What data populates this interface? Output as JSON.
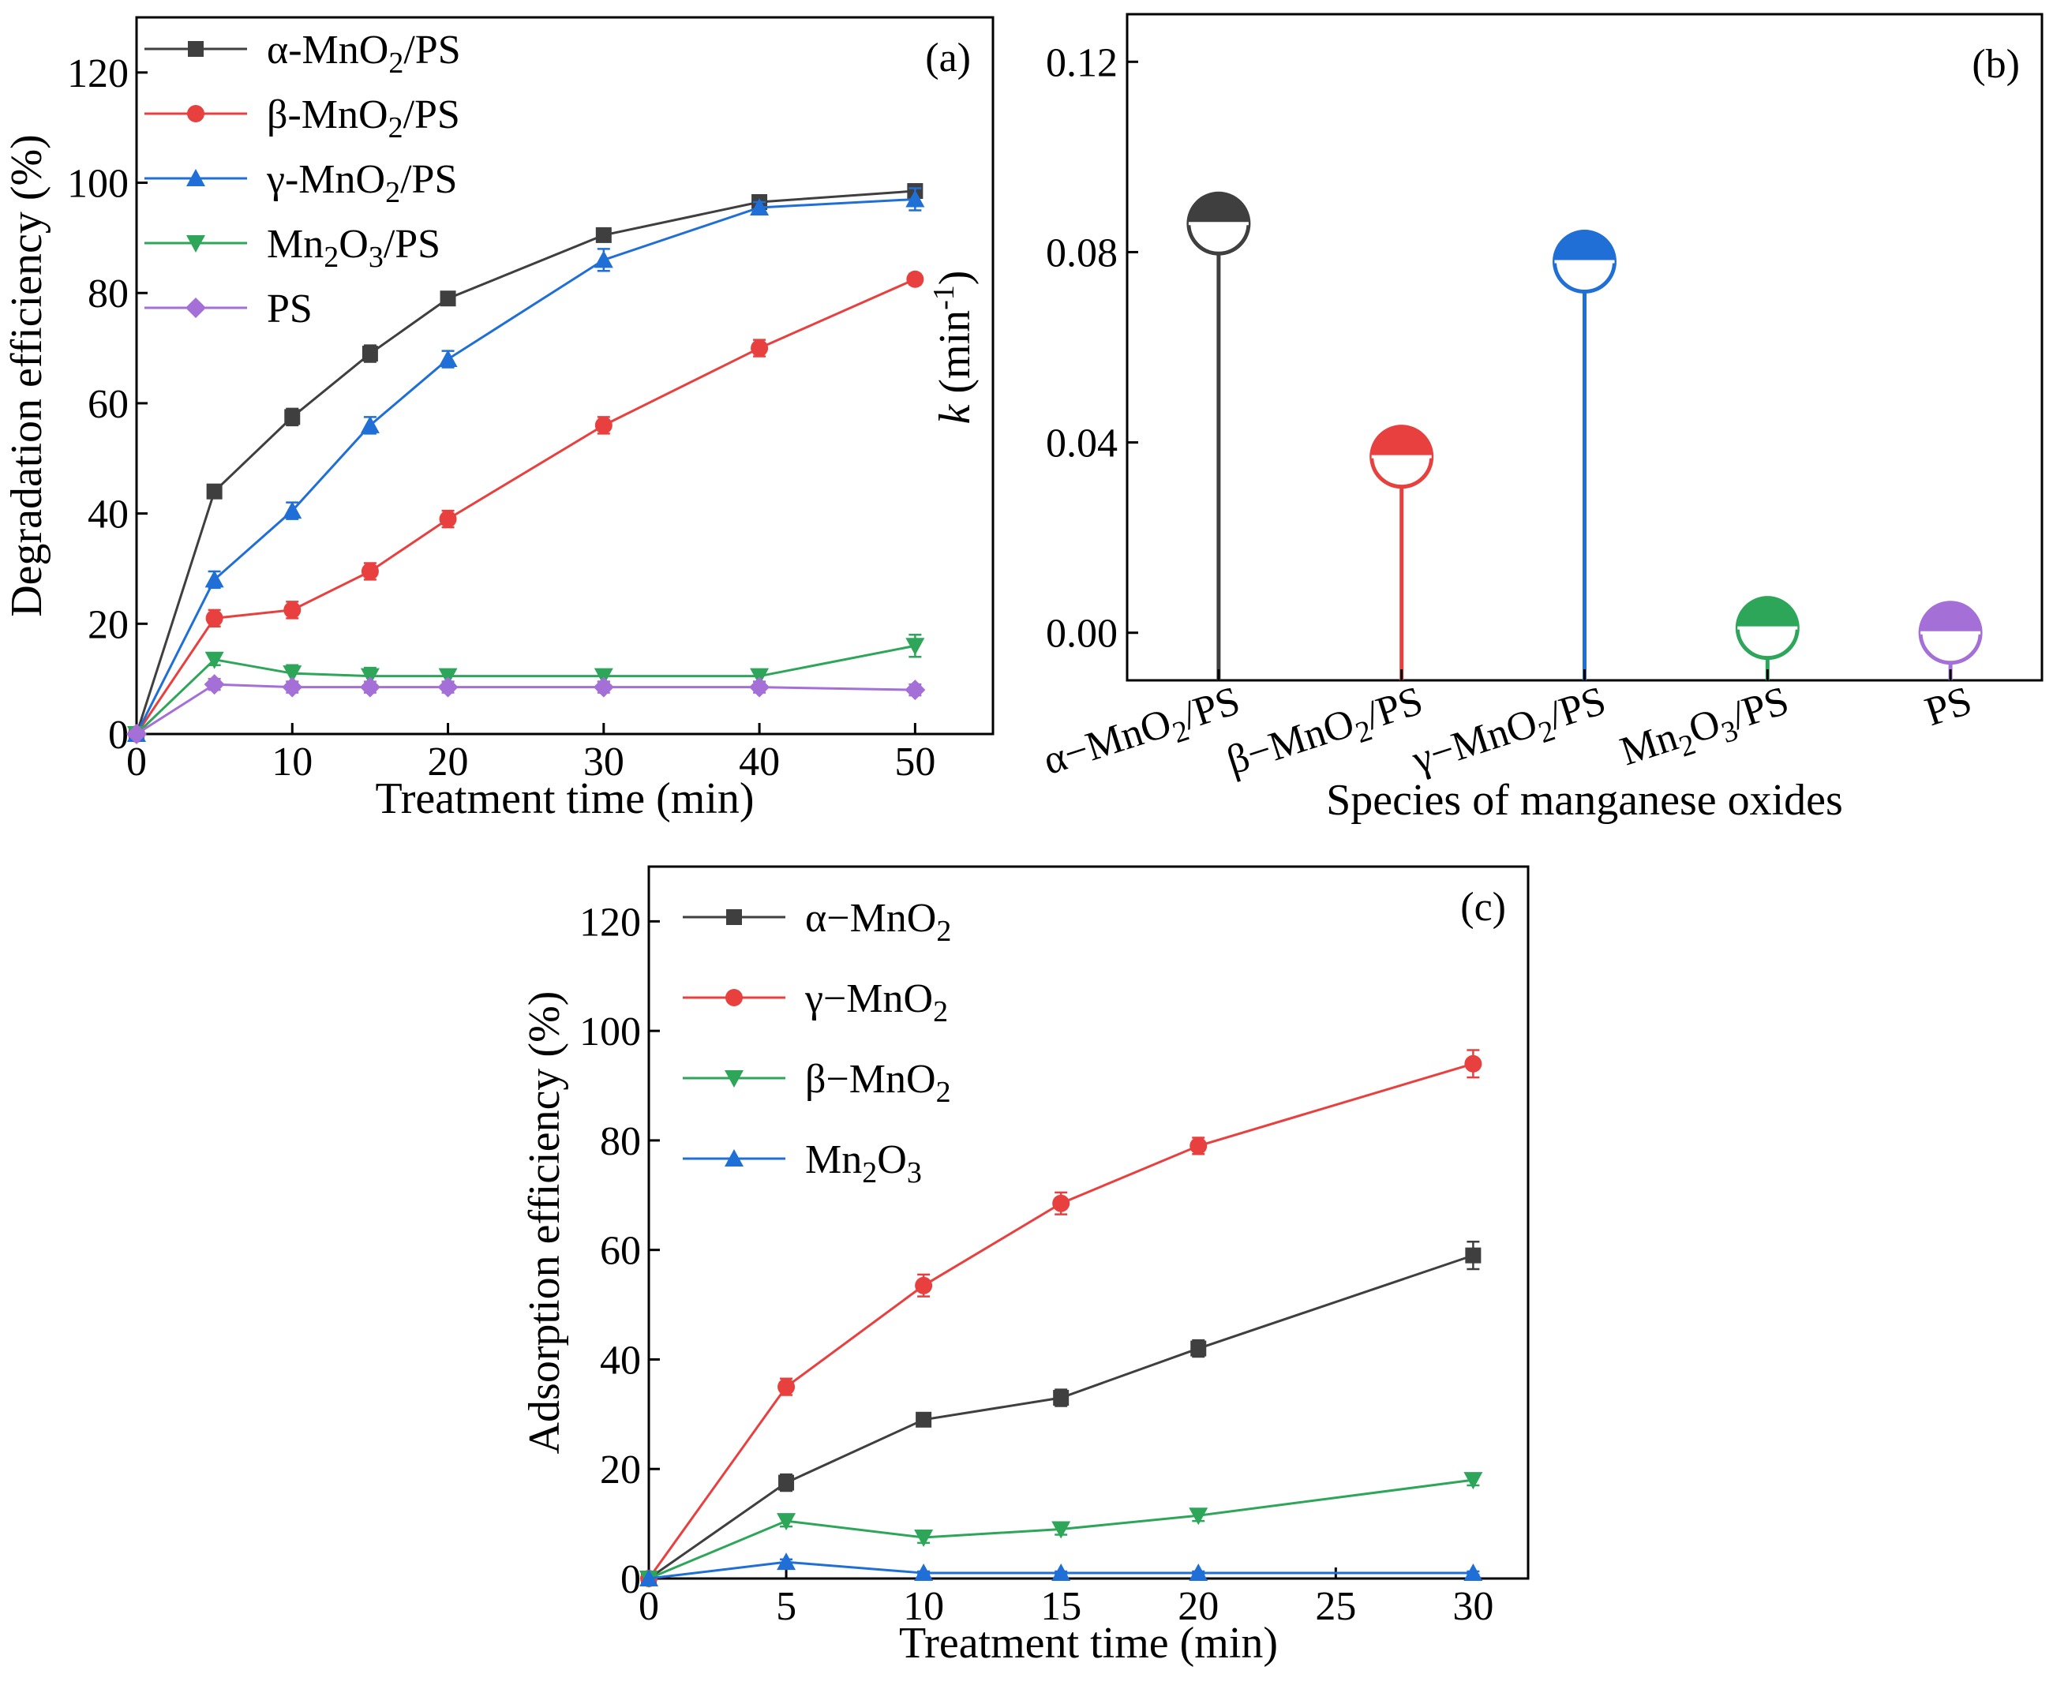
{
  "chart_data": [
    {
      "id": "a",
      "type": "line",
      "panel_label": "(a)",
      "xlabel": "Treatment time (min)",
      "ylabel": "Degradation efficiency (%)",
      "xlim": [
        0,
        55
      ],
      "ylim": [
        0,
        130
      ],
      "xticks": [
        0,
        10,
        20,
        30,
        40,
        50
      ],
      "yticks": [
        0,
        20,
        40,
        60,
        80,
        100,
        120
      ],
      "x": [
        0,
        5,
        10,
        15,
        20,
        30,
        40,
        50
      ],
      "legend_position": "top-left",
      "series": [
        {
          "name": "α-MnO2/PS",
          "label_main": "α-MnO",
          "label_sub": "2",
          "label_rest": "/PS",
          "color": "#3f3f3f",
          "marker": "square",
          "values": [
            0,
            44,
            57.5,
            69,
            79,
            90.5,
            96.5,
            98.5
          ],
          "errors": [
            0,
            1,
            1.5,
            1.5,
            1,
            1,
            1,
            1
          ]
        },
        {
          "name": "β-MnO2/PS",
          "label_main": "β-MnO",
          "label_sub": "2",
          "label_rest": "/PS",
          "color": "#e8403f",
          "marker": "circle",
          "values": [
            0,
            21,
            22.5,
            29.5,
            39,
            56,
            70,
            82.5
          ],
          "errors": [
            0,
            1.5,
            1.5,
            1.5,
            1.5,
            1.5,
            1.5,
            1
          ]
        },
        {
          "name": "γ-MnO2/PS",
          "label_main": "γ-MnO",
          "label_sub": "2",
          "label_rest": "/PS",
          "color": "#1f6fd6",
          "marker": "triangle-up",
          "values": [
            0,
            28,
            40.5,
            56,
            68,
            86,
            95.5,
            97
          ],
          "errors": [
            0,
            1.5,
            1.5,
            1.5,
            1.5,
            2,
            1,
            2
          ]
        },
        {
          "name": "Mn2O3/PS",
          "label_main": "Mn",
          "label_sub": "2",
          "label_rest": "O",
          "label_sub2": "3",
          "label_rest2": "/PS",
          "color": "#2ea65a",
          "marker": "triangle-down",
          "values": [
            0,
            13.5,
            11,
            10.5,
            10.5,
            10.5,
            10.5,
            16
          ],
          "errors": [
            0,
            1,
            1.5,
            1.5,
            1,
            1,
            1,
            2
          ]
        },
        {
          "name": "PS",
          "label_main": "PS",
          "color": "#a56fd8",
          "marker": "diamond",
          "values": [
            0,
            9,
            8.5,
            8.5,
            8.5,
            8.5,
            8.5,
            8
          ],
          "errors": [
            0,
            1,
            1,
            1,
            1,
            1,
            1,
            1
          ]
        }
      ]
    },
    {
      "id": "b",
      "type": "lollipop",
      "panel_label": "(b)",
      "xlabel": "Species of manganese oxides",
      "ylabel_main": "k",
      "ylabel_unit": " (min",
      "ylabel_sup": "-1",
      "ylabel_close": ")",
      "ylim": [
        -0.01,
        0.13
      ],
      "yticks": [
        "0.00",
        "0.04",
        "0.08",
        "0.12"
      ],
      "categories": [
        {
          "main": "α−MnO",
          "sub": "2",
          "rest": "/PS"
        },
        {
          "main": "β−MnO",
          "sub": "2",
          "rest": "/PS"
        },
        {
          "main": "γ−MnO",
          "sub": "2",
          "rest": "/PS"
        },
        {
          "main": "Mn",
          "sub": "2",
          "rest": "O",
          "sub2": "3",
          "rest2": "/PS"
        },
        {
          "main": "PS"
        }
      ],
      "values": [
        0.086,
        0.037,
        0.078,
        0.001,
        0.0
      ],
      "colors": [
        "#3f3f3f",
        "#e8403f",
        "#1f6fd6",
        "#2ea65a",
        "#a56fd8"
      ]
    },
    {
      "id": "c",
      "type": "line",
      "panel_label": "(c)",
      "xlabel": "Treatment time (min)",
      "ylabel": "Adsorption efficiency (%)",
      "xlim": [
        0,
        32
      ],
      "ylim": [
        0,
        130
      ],
      "xticks": [
        0,
        5,
        10,
        15,
        20,
        25,
        30
      ],
      "yticks": [
        0,
        20,
        40,
        60,
        80,
        100,
        120
      ],
      "x": [
        0,
        5,
        10,
        15,
        20,
        30
      ],
      "legend_position": "top-left",
      "series": [
        {
          "name": "α-MnO2",
          "label_main": "α−MnO",
          "label_sub": "2",
          "color": "#3f3f3f",
          "marker": "square",
          "values": [
            0,
            17.5,
            29,
            33,
            42,
            59
          ],
          "errors": [
            0,
            1.5,
            1,
            1.5,
            1.5,
            2.5
          ]
        },
        {
          "name": "γ-MnO2",
          "label_main": "γ−MnO",
          "label_sub": "2",
          "color": "#e8403f",
          "marker": "circle",
          "values": [
            0,
            35,
            53.5,
            68.5,
            79,
            94
          ],
          "errors": [
            0,
            1.5,
            2,
            2,
            1.5,
            2.5
          ]
        },
        {
          "name": "β-MnO2",
          "label_main": "β−MnO",
          "label_sub": "2",
          "color": "#2ea65a",
          "marker": "triangle-down",
          "values": [
            0,
            10.5,
            7.5,
            9,
            11.5,
            18
          ],
          "errors": [
            0,
            1,
            1,
            1,
            1,
            1
          ]
        },
        {
          "name": "Mn2O3",
          "label_main": "Mn",
          "label_sub": "2",
          "label_rest": "O",
          "label_sub2": "3",
          "color": "#1f6fd6",
          "marker": "triangle-up",
          "values": [
            0,
            3,
            1,
            1,
            1,
            1
          ],
          "errors": [
            0,
            0.5,
            0.3,
            0.3,
            0.3,
            0.3
          ]
        }
      ]
    }
  ]
}
